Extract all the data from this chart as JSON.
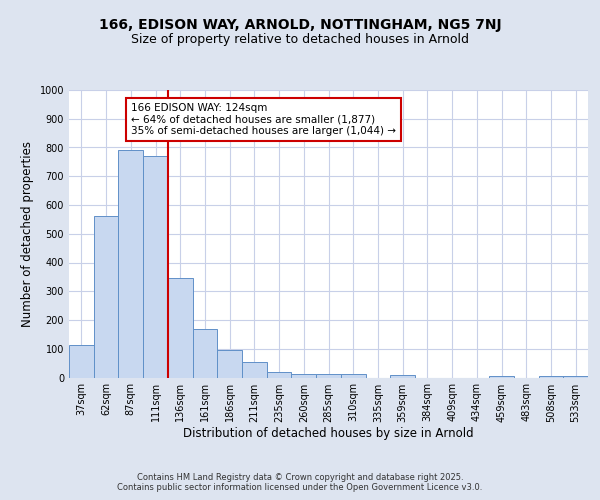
{
  "title_line1": "166, EDISON WAY, ARNOLD, NOTTINGHAM, NG5 7NJ",
  "title_line2": "Size of property relative to detached houses in Arnold",
  "xlabel": "Distribution of detached houses by size in Arnold",
  "ylabel": "Number of detached properties",
  "categories": [
    "37sqm",
    "62sqm",
    "87sqm",
    "111sqm",
    "136sqm",
    "161sqm",
    "186sqm",
    "211sqm",
    "235sqm",
    "260sqm",
    "285sqm",
    "310sqm",
    "335sqm",
    "359sqm",
    "384sqm",
    "409sqm",
    "434sqm",
    "459sqm",
    "483sqm",
    "508sqm",
    "533sqm"
  ],
  "values": [
    112,
    560,
    790,
    770,
    347,
    168,
    97,
    53,
    18,
    13,
    11,
    11,
    0,
    10,
    0,
    0,
    0,
    5,
    0,
    5,
    5
  ],
  "bar_color": "#c8d8f0",
  "bar_edge_color": "#6090c8",
  "vline_x": 3.5,
  "vline_color": "#cc0000",
  "annotation_text": "166 EDISON WAY: 124sqm\n← 64% of detached houses are smaller (1,877)\n35% of semi-detached houses are larger (1,044) →",
  "annotation_box_color": "#ffffff",
  "annotation_box_edge": "#cc0000",
  "ylim": [
    0,
    1000
  ],
  "yticks": [
    0,
    100,
    200,
    300,
    400,
    500,
    600,
    700,
    800,
    900,
    1000
  ],
  "background_color": "#dde4f0",
  "plot_bg_color": "#ffffff",
  "grid_color": "#c8d0e8",
  "footer": "Contains HM Land Registry data © Crown copyright and database right 2025.\nContains public sector information licensed under the Open Government Licence v3.0.",
  "title_fontsize": 10,
  "subtitle_fontsize": 9,
  "axis_label_fontsize": 8.5,
  "tick_fontsize": 7,
  "annotation_fontsize": 7.5,
  "footer_fontsize": 6
}
